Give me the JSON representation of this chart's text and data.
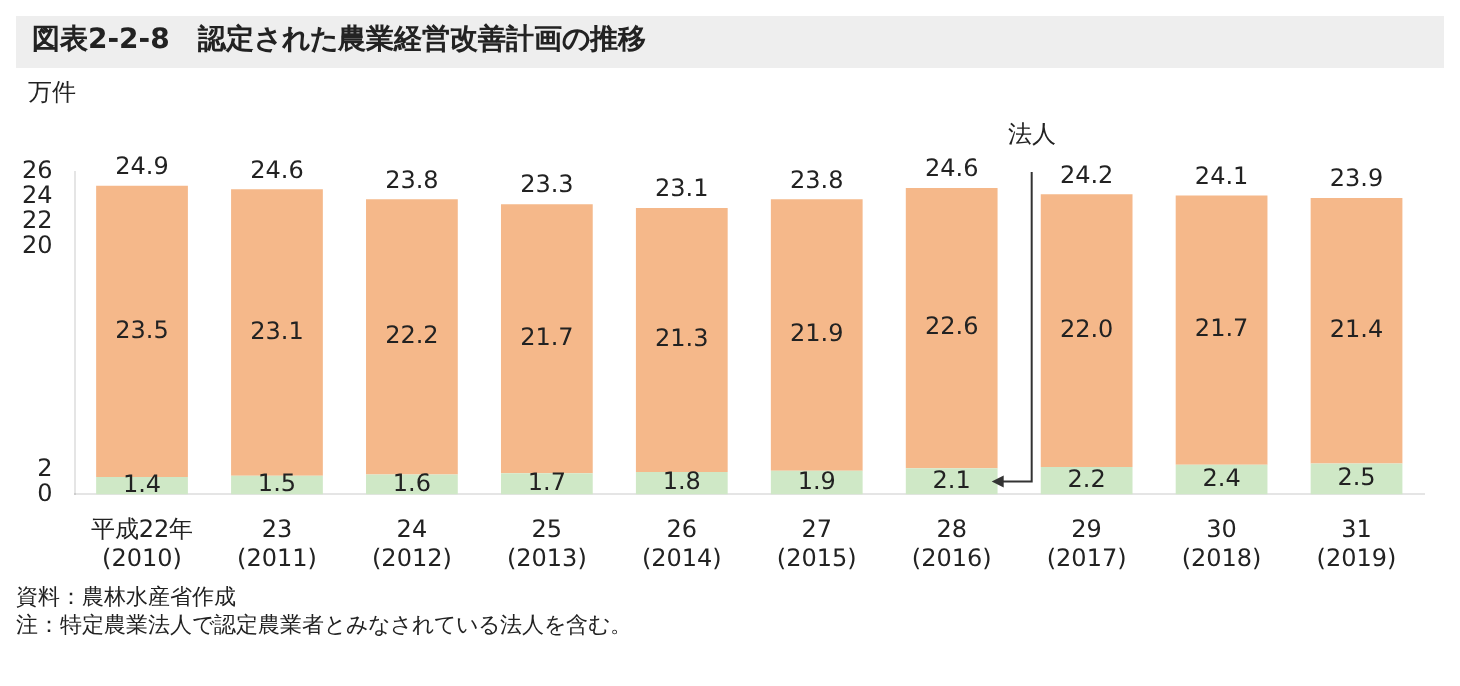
{
  "chart_data": {
    "type": "bar",
    "title": "図表2-2-8　認定された農業経営改善計画の推移",
    "ylabel": "万件",
    "categories": [
      "平成22年\n(2010)",
      "23\n(2011)",
      "24\n(2012)",
      "25\n(2013)",
      "26\n(2014)",
      "27\n(2015)",
      "28\n(2016)",
      "29\n(2017)",
      "30\n(2018)",
      "31\n(2019)"
    ],
    "stacked": true,
    "series": [
      {
        "name": "法人",
        "color": "#cfe8c6",
        "values": [
          1.4,
          1.5,
          1.6,
          1.7,
          1.8,
          1.9,
          2.1,
          2.2,
          2.4,
          2.5
        ],
        "value_labels": [
          "1.4",
          "1.5",
          "1.6",
          "1.7",
          "1.8",
          "1.9",
          "2.1",
          "2.2",
          "2.4",
          "2.5"
        ]
      },
      {
        "color": "#f5b88a",
        "values": [
          23.5,
          23.1,
          22.2,
          21.7,
          21.3,
          21.9,
          22.6,
          22.0,
          21.7,
          21.4
        ],
        "value_labels": [
          "23.5",
          "23.1",
          "22.2",
          "21.7",
          "21.3",
          "21.9",
          "22.6",
          "22.0",
          "21.7",
          "21.4"
        ]
      }
    ],
    "totals": [
      "24.9",
      "24.6",
      "23.8",
      "23.3",
      "23.1",
      "23.8",
      "24.6",
      "24.2",
      "24.1",
      "23.9"
    ],
    "ylim": [
      0,
      26
    ],
    "yticks": [
      0,
      2,
      20,
      22,
      24,
      26
    ],
    "annotations": [
      "資料：農林水産省作成",
      "注：特定農業法人で認定農業者とみなされている法人を含む。"
    ]
  }
}
